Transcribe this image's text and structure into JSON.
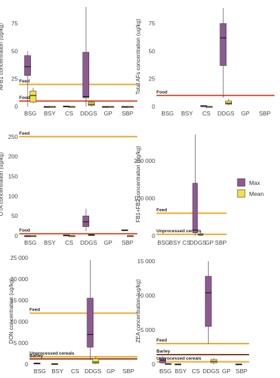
{
  "legend": {
    "items": [
      {
        "label": "Max",
        "color": "#8e5a92"
      },
      {
        "label": "Mean",
        "color": "#f2e04b"
      }
    ]
  },
  "colors": {
    "feed_line": "#f5a623",
    "food_line": "#e2502c",
    "barley_line": "#8b3a1f",
    "max_box": "#8e5a92",
    "mean_box": "#f2e04b"
  },
  "chart_data": [
    {
      "type": "box",
      "ylabel": "AFB1 concentration (ug/kg)",
      "ylim": [
        0,
        90
      ],
      "yticks": [
        0,
        25,
        50,
        75
      ],
      "categories": [
        "BSG",
        "BSY",
        "CS",
        "DDGS",
        "GP",
        "SBP"
      ],
      "series": [
        {
          "name": "Max",
          "boxes": [
            {
              "cat": "BSG",
              "min": 0,
              "q1": 28,
              "median": 36,
              "q3": 46,
              "max": 50
            },
            {
              "cat": "BSY",
              "min": 0,
              "q1": 0,
              "median": 0,
              "q3": 0,
              "max": 0
            },
            {
              "cat": "CS",
              "min": 0,
              "q1": 0,
              "median": 0,
              "q3": 0.5,
              "max": 0.5
            },
            {
              "cat": "DDGS",
              "min": 0,
              "q1": 8,
              "median": 9,
              "q3": 49,
              "max": 90
            },
            {
              "cat": "GP",
              "min": 0,
              "q1": 0,
              "median": 0,
              "q3": 0,
              "max": 0
            },
            {
              "cat": "SBP",
              "min": 0,
              "q1": 0,
              "median": 0,
              "q3": 0,
              "max": 0
            }
          ]
        },
        {
          "name": "Mean",
          "boxes": [
            {
              "cat": "BSG",
              "min": 3,
              "q1": 4,
              "median": 10,
              "q3": 14,
              "max": 17
            },
            {
              "cat": "BSY",
              "min": 0,
              "q1": 0,
              "median": 0,
              "q3": 0,
              "max": 0
            },
            {
              "cat": "CS",
              "min": 0,
              "q1": 0,
              "median": 0,
              "q3": 0,
              "max": 0
            },
            {
              "cat": "DDGS",
              "min": 0,
              "q1": 1,
              "median": 2,
              "q3": 4,
              "max": 5
            },
            {
              "cat": "GP",
              "min": 0,
              "q1": 0,
              "median": 0,
              "q3": 0,
              "max": 0
            },
            {
              "cat": "SBP",
              "min": 0,
              "q1": 0,
              "median": 0,
              "q3": 0,
              "max": 0
            }
          ]
        }
      ],
      "thresholds": [
        {
          "label": "Feed",
          "value": 20,
          "color": "#f5a623"
        },
        {
          "label": "Food",
          "value": 5,
          "color": "#e2502c"
        }
      ]
    },
    {
      "type": "box",
      "ylabel": "Total AFs concentration (ug/kg)",
      "ylim": [
        0,
        90
      ],
      "yticks": [
        0,
        25,
        50,
        75
      ],
      "categories": [
        "BSG",
        "BSY",
        "CS",
        "DDGS",
        "GP",
        "SBP"
      ],
      "series": [
        {
          "name": "Max",
          "boxes": [
            {
              "cat": "CS",
              "min": 0,
              "q1": 0,
              "median": 0,
              "q3": 1,
              "max": 1
            },
            {
              "cat": "DDGS",
              "min": 8,
              "q1": 37,
              "median": 62,
              "q3": 75,
              "max": 89
            }
          ]
        },
        {
          "name": "Mean",
          "boxes": [
            {
              "cat": "CS",
              "min": 0,
              "q1": 0,
              "median": 0,
              "q3": 0,
              "max": 0
            },
            {
              "cat": "DDGS",
              "min": 1,
              "q1": 2,
              "median": 3,
              "q3": 5,
              "max": 7
            }
          ]
        }
      ],
      "thresholds": [
        {
          "label": "Food",
          "value": 10,
          "color": "#e2502c"
        }
      ]
    },
    {
      "type": "box",
      "ylabel": "OTA concentration (ug/kg)",
      "ylim": [
        0,
        260
      ],
      "yticks": [
        0,
        50,
        100,
        150,
        200,
        250
      ],
      "categories": [
        "BSG",
        "BSY",
        "CS",
        "DDGS",
        "GP",
        "SBP"
      ],
      "series": [
        {
          "name": "Max",
          "boxes": [
            {
              "cat": "BSG",
              "min": 0,
              "q1": 0,
              "median": 0,
              "q3": 0,
              "max": 0
            },
            {
              "cat": "CS",
              "min": 0,
              "q1": 1,
              "median": 1,
              "q3": 2,
              "max": 2
            },
            {
              "cat": "DDGS",
              "min": 12,
              "q1": 23,
              "median": 35,
              "q3": 50,
              "max": 68
            },
            {
              "cat": "SBP",
              "min": 14,
              "q1": 14,
              "median": 14,
              "q3": 15,
              "max": 15
            }
          ]
        },
        {
          "name": "Mean",
          "boxes": [
            {
              "cat": "BSG",
              "min": 0,
              "q1": 0,
              "median": 0,
              "q3": 0,
              "max": 0
            },
            {
              "cat": "CS",
              "min": 0,
              "q1": 0,
              "median": 0,
              "q3": 0,
              "max": 0
            },
            {
              "cat": "DDGS",
              "min": 0,
              "q1": 1,
              "median": 2,
              "q3": 3,
              "max": 4
            },
            {
              "cat": "SBP",
              "min": 0,
              "q1": 0,
              "median": 0,
              "q3": 0,
              "max": 0
            }
          ]
        }
      ],
      "thresholds": [
        {
          "label": "Feed",
          "value": 250,
          "color": "#f5a623"
        },
        {
          "label": "Food",
          "value": 5,
          "color": "#e2502c"
        }
      ]
    },
    {
      "type": "box",
      "ylabel": "FB1+FB2 concentration (ug/kg)",
      "ylim": [
        0,
        275000
      ],
      "yticks": [
        0,
        100000,
        200000
      ],
      "yticklabels": [
        "0",
        "100 000",
        "200 000"
      ],
      "categories": [
        "BSG",
        "BSY",
        "CS",
        "DDGS",
        "GP",
        "SBP"
      ],
      "series": [
        {
          "name": "Max",
          "boxes": [
            {
              "cat": "DDGS",
              "min": 0,
              "q1": 8000,
              "median": 15000,
              "q3": 140000,
              "max": 270000
            }
          ]
        },
        {
          "name": "Mean",
          "boxes": [
            {
              "cat": "DDGS",
              "min": 0,
              "q1": 1000,
              "median": 3000,
              "q3": 6000,
              "max": 9000
            }
          ]
        }
      ],
      "thresholds": [
        {
          "label": "Feed",
          "value": 60000,
          "color": "#f5a623"
        },
        {
          "label": "Unprocessed cereals",
          "value": 4000,
          "color": "#f5a623"
        }
      ]
    },
    {
      "type": "box",
      "ylabel": "DON concentration (ug/kg)",
      "ylim": [
        0,
        25000
      ],
      "yticks": [
        0,
        5000,
        10000,
        15000,
        20000,
        25000
      ],
      "yticklabels": [
        "0",
        "5 000",
        "10 000",
        "15 000",
        "20 000",
        "25 000"
      ],
      "categories": [
        "BSG",
        "BSY",
        "CS",
        "DDGS",
        "GP",
        "SBP"
      ],
      "series": [
        {
          "name": "Max",
          "boxes": [
            {
              "cat": "BSG",
              "min": 0,
              "q1": 100,
              "median": 200,
              "q3": 300,
              "max": 400
            },
            {
              "cat": "BSY",
              "min": 0,
              "q1": 0,
              "median": 100,
              "q3": 150,
              "max": 200
            },
            {
              "cat": "DDGS",
              "min": 1000,
              "q1": 4000,
              "median": 7000,
              "q3": 15500,
              "max": 24500
            }
          ]
        },
        {
          "name": "Mean",
          "boxes": [
            {
              "cat": "DDGS",
              "min": 0,
              "q1": 200,
              "median": 500,
              "q3": 1300,
              "max": 1800
            }
          ]
        }
      ],
      "thresholds": [
        {
          "label": "Feed",
          "value": 12000,
          "color": "#f5a623"
        },
        {
          "label": "Unprocessed cereals",
          "value": 1750,
          "color": "#f5a623"
        },
        {
          "label": "Barley",
          "value": 1250,
          "color": "#8b3a1f"
        }
      ]
    },
    {
      "type": "box",
      "ylabel": "ZEA concentration (ug/kg)",
      "ylim": [
        0,
        15500
      ],
      "yticks": [
        0,
        5000,
        10000,
        15000
      ],
      "yticklabels": [
        "0",
        "5 000",
        "10 000",
        "15 000"
      ],
      "categories": [
        "BSG",
        "BSY",
        "CS",
        "DDGS",
        "GP",
        "SBP"
      ],
      "series": [
        {
          "name": "Max",
          "boxes": [
            {
              "cat": "BSG",
              "min": 0,
              "q1": 200,
              "median": 600,
              "q3": 900,
              "max": 1200
            },
            {
              "cat": "BSY",
              "min": 0,
              "q1": 0,
              "median": 0,
              "q3": 50,
              "max": 50
            },
            {
              "cat": "DDGS",
              "min": 3000,
              "q1": 5500,
              "median": 10400,
              "q3": 12800,
              "max": 15000
            },
            {
              "cat": "SBP",
              "min": 0,
              "q1": 0,
              "median": 0,
              "q3": 50,
              "max": 50
            }
          ]
        },
        {
          "name": "Mean",
          "boxes": [
            {
              "cat": "BSG",
              "min": 0,
              "q1": 0,
              "median": 50,
              "q3": 100,
              "max": 150
            },
            {
              "cat": "DDGS",
              "min": 0,
              "q1": 200,
              "median": 400,
              "q3": 700,
              "max": 900
            }
          ]
        }
      ],
      "thresholds": [
        {
          "label": "Feed",
          "value": 3000,
          "color": "#f5a623"
        },
        {
          "label": "Barley",
          "value": 1400,
          "color": "#8b3a1f"
        },
        {
          "label": "Unprocessed cereals",
          "value": 350,
          "color": "#f5a623"
        }
      ]
    }
  ]
}
